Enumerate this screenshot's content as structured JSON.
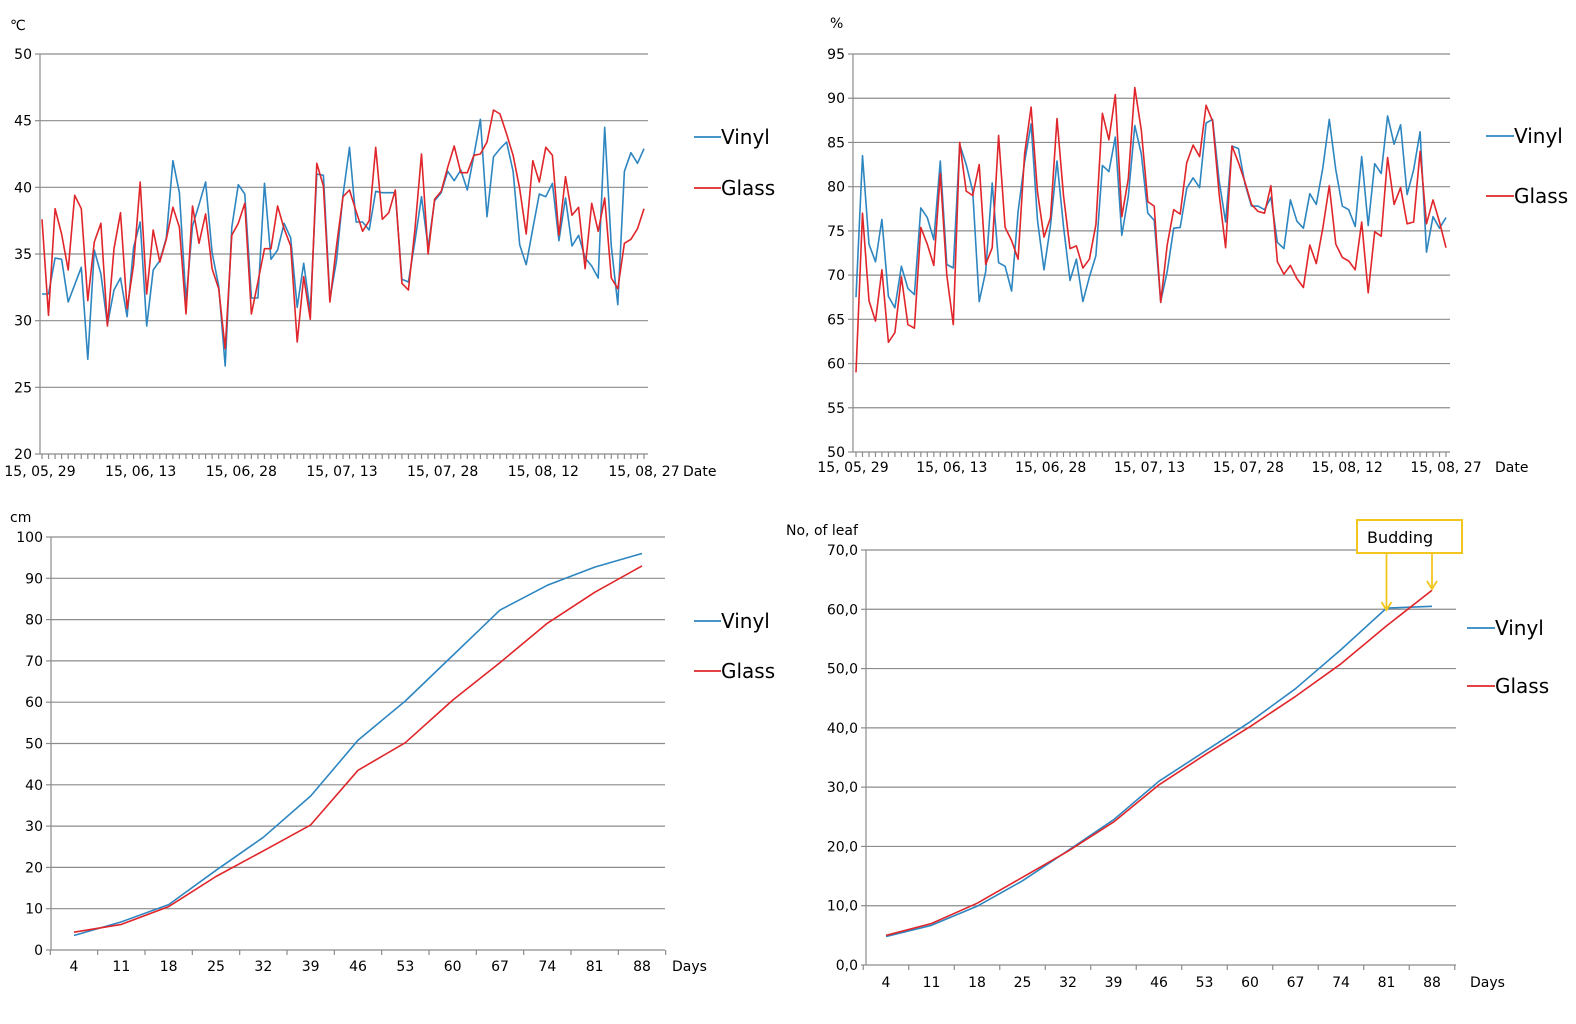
{
  "colors": {
    "vinyl": "#2e86c1",
    "glass": "#e0262a",
    "grid": "#8c8c8c",
    "annotation": "#f2c61f"
  },
  "chart_data": [
    {
      "id": "temperature",
      "type": "line",
      "unit_label": "℃",
      "xlabel": "Date",
      "ylim": [
        20,
        50
      ],
      "yticks": [
        20,
        25,
        30,
        35,
        40,
        45,
        50
      ],
      "ytick_labels": [
        "20",
        "25",
        "30",
        "35",
        "40",
        "45",
        "50"
      ],
      "xtick_labels": [
        "15, 05, 29",
        "15, 06, 13",
        "15, 06, 28",
        "15, 07, 13",
        "15, 07, 28",
        "15, 08, 12",
        "15, 08, 27"
      ],
      "grid": true,
      "legend": "right",
      "series": [
        {
          "name": "Vinyl",
          "color": "#2e86c1",
          "values": [
            32,
            32,
            34.7,
            34.6,
            31.4,
            32.7,
            34,
            27.1,
            35.3,
            33.5,
            29.7,
            32.3,
            33.2,
            30.3,
            35.5,
            37.4,
            29.6,
            33.8,
            34.5,
            36.2,
            42,
            39.6,
            31.5,
            37.1,
            38.7,
            40.4,
            35.1,
            32.6,
            26.6,
            37,
            40.2,
            39.5,
            31.7,
            31.7,
            40.3,
            34.6,
            35.3,
            37.3,
            36.2,
            31,
            34.3,
            30.7,
            41,
            40.9,
            31.6,
            34.5,
            39.4,
            43,
            37.4,
            37.4,
            36.8,
            39.7,
            39.6,
            39.6,
            39.6,
            33.1,
            32.9,
            36,
            39.3,
            35.5,
            39,
            39.6,
            41.2,
            40.5,
            41.3,
            39.8,
            42.4,
            45.1,
            37.8,
            42.3,
            42.9,
            43.4,
            41.2,
            35.7,
            34.2,
            36.9,
            39.5,
            39.3,
            40.3,
            36,
            39.2,
            35.6,
            36.4,
            34.7,
            34.1,
            33.2,
            44.5,
            35.6,
            31.2,
            41.2,
            42.6,
            41.8,
            42.9
          ]
        },
        {
          "name": "Glass",
          "color": "#e0262a",
          "values": [
            37.6,
            30.4,
            38.4,
            36.5,
            33.8,
            39.4,
            38.4,
            31.5,
            35.9,
            37.3,
            29.6,
            35.4,
            38.1,
            30.9,
            34.2,
            40.4,
            32,
            36.8,
            34.4,
            36.1,
            38.5,
            37,
            30.5,
            38.6,
            35.8,
            38,
            33.9,
            32.4,
            27.9,
            36.4,
            37.3,
            38.8,
            30.5,
            32.9,
            35.4,
            35.4,
            38.6,
            36.9,
            35.6,
            28.4,
            33.3,
            30.1,
            41.8,
            40.1,
            31.4,
            35.6,
            39.3,
            39.8,
            38.2,
            36.7,
            37.5,
            43,
            37.6,
            38.1,
            39.8,
            32.8,
            32.3,
            36.9,
            42.5,
            35,
            39.1,
            39.7,
            41.5,
            43.1,
            41.1,
            41.1,
            42.4,
            42.5,
            43.4,
            45.8,
            45.5,
            44,
            42.4,
            39.9,
            36.5,
            42,
            40.4,
            43,
            42.4,
            36.4,
            40.8,
            37.9,
            38.5,
            33.9,
            38.8,
            36.7,
            39.2,
            33.2,
            32.4,
            35.8,
            36.1,
            36.9,
            38.4
          ]
        }
      ]
    },
    {
      "id": "humidity",
      "type": "line",
      "unit_label": "%",
      "xlabel": "Date",
      "ylim": [
        50,
        95
      ],
      "yticks": [
        50,
        55,
        60,
        65,
        70,
        75,
        80,
        85,
        90,
        95
      ],
      "ytick_labels": [
        "50",
        "55",
        "60",
        "65",
        "70",
        "75",
        "80",
        "85",
        "90",
        "95"
      ],
      "xtick_labels": [
        "15, 05, 29",
        "15, 06, 13",
        "15, 06, 28",
        "15, 07, 13",
        "15, 07, 28",
        "15, 08, 12",
        "15, 08, 27"
      ],
      "grid": true,
      "legend": "right",
      "series": [
        {
          "name": "Vinyl",
          "color": "#2e86c1",
          "values": [
            67.5,
            83.5,
            73.5,
            71.5,
            76.3,
            67.6,
            66.3,
            71,
            68.5,
            67.8,
            77.6,
            76.5,
            74,
            82.9,
            71.2,
            70.8,
            84.8,
            82.5,
            79.5,
            67,
            70.4,
            80.4,
            71.4,
            71,
            68.2,
            77.2,
            82.8,
            87.1,
            76.2,
            70.6,
            75.6,
            82.9,
            75.5,
            69.4,
            71.8,
            67,
            69.8,
            72.2,
            82.4,
            81.7,
            85.6,
            74.5,
            78.9,
            86.9,
            83.7,
            77,
            76.2,
            67,
            70.4,
            75.3,
            75.4,
            79.8,
            81,
            79.9,
            87.2,
            87.6,
            80.7,
            76,
            84.6,
            84.3,
            80.3,
            77.8,
            77.8,
            77.4,
            78.8,
            73.7,
            73,
            78.5,
            76.1,
            75.3,
            79.2,
            78,
            82.1,
            87.6,
            81.9,
            77.8,
            77.4,
            75.5,
            83.4,
            75.6,
            82.6,
            81.5,
            88,
            84.8,
            87,
            79.1,
            81.9,
            86.2,
            72.6,
            76.6,
            75.3,
            76.5
          ]
        },
        {
          "name": "Glass",
          "color": "#e0262a",
          "values": [
            59,
            77,
            67.1,
            64.8,
            70.6,
            62.4,
            63.5,
            69.8,
            64.4,
            64,
            75.4,
            73.5,
            71.1,
            81.5,
            70,
            64.4,
            85,
            79.5,
            79,
            82.5,
            71.2,
            73.1,
            85.8,
            75.4,
            73.9,
            71.8,
            83.7,
            89,
            79.4,
            74.3,
            76.5,
            87.7,
            79,
            73,
            73.3,
            70.8,
            71.8,
            75.7,
            88.3,
            85.3,
            90.4,
            76.6,
            80.9,
            91.2,
            86.4,
            78.3,
            77.8,
            66.9,
            73.4,
            77.4,
            76.9,
            82.7,
            84.7,
            83.4,
            89.2,
            87.4,
            79.2,
            73.1,
            84.6,
            82.7,
            80.5,
            78,
            77.2,
            77,
            80.1,
            71.5,
            70.1,
            71.1,
            69.6,
            68.6,
            73.4,
            71.3,
            75.3,
            80.1,
            73.5,
            72,
            71.6,
            70.6,
            76,
            68,
            74.9,
            74.4,
            83.3,
            78,
            79.9,
            75.8,
            76,
            84,
            75.8,
            78.5,
            76,
            73.1
          ]
        }
      ]
    },
    {
      "id": "plant-height",
      "type": "line",
      "unit_label": "cm",
      "xlabel": "Days",
      "ylim": [
        0,
        100
      ],
      "yticks": [
        0,
        10,
        20,
        30,
        40,
        50,
        60,
        70,
        80,
        90,
        100
      ],
      "ytick_labels": [
        "0",
        "10",
        "20",
        "30",
        "40",
        "50",
        "60",
        "70",
        "80",
        "90",
        "100"
      ],
      "x": [
        4,
        11,
        18,
        25,
        32,
        39,
        46,
        53,
        60,
        67,
        74,
        81,
        88
      ],
      "xtick_labels": [
        "4",
        "11",
        "18",
        "25",
        "32",
        "39",
        "46",
        "53",
        "60",
        "67",
        "74",
        "81",
        "88"
      ],
      "grid": true,
      "legend": "right",
      "series": [
        {
          "name": "Vinyl",
          "color": "#2e86c1",
          "values": [
            3.5,
            6.8,
            11,
            19.3,
            27.3,
            37.3,
            50.8,
            60.3,
            71.3,
            82.3,
            88.3,
            92.7,
            96
          ]
        },
        {
          "name": "Glass",
          "color": "#e0262a",
          "values": [
            4.3,
            6.2,
            10.5,
            17.8,
            24,
            30.3,
            43.5,
            50.2,
            60.5,
            69.6,
            79.1,
            86.6,
            93
          ]
        }
      ]
    },
    {
      "id": "leaf-count",
      "type": "line",
      "unit_label": "No, of leaf",
      "xlabel": "Days",
      "ylim": [
        0,
        70
      ],
      "yticks": [
        0,
        10,
        20,
        30,
        40,
        50,
        60,
        70
      ],
      "ytick_labels": [
        "0,0",
        "10,0",
        "20,0",
        "30,0",
        "40,0",
        "50,0",
        "60,0",
        "70,0"
      ],
      "x": [
        4,
        11,
        18,
        25,
        32,
        39,
        46,
        53,
        60,
        67,
        74,
        81,
        88
      ],
      "xtick_labels": [
        "4",
        "11",
        "18",
        "25",
        "32",
        "39",
        "46",
        "53",
        "60",
        "67",
        "74",
        "81",
        "88"
      ],
      "grid": true,
      "legend": "right",
      "annotation": {
        "text": "Budding",
        "arrows_at": [
          81,
          88
        ]
      },
      "series": [
        {
          "name": "Vinyl",
          "color": "#2e86c1",
          "values": [
            4.8,
            6.7,
            9.9,
            14.2,
            19.3,
            24.5,
            31,
            36,
            41,
            46.6,
            53.2,
            60.2,
            60.5
          ]
        },
        {
          "name": "Glass",
          "color": "#e0262a",
          "values": [
            5,
            7,
            10.4,
            14.8,
            19.2,
            24.1,
            30.4,
            35.4,
            40.2,
            45.3,
            50.8,
            57.2,
            63.2
          ]
        }
      ]
    }
  ]
}
